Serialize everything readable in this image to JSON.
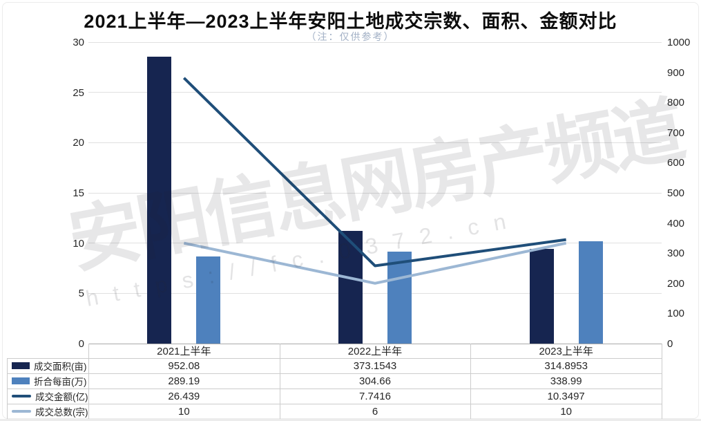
{
  "title": "2021上半年—2023上半年安阳土地成交宗数、面积、金额对比",
  "subtitle": "（注：仅供参考）",
  "watermark": {
    "main": "安阳信息网房产频道",
    "url": "https://fc.0372.cn"
  },
  "colors": {
    "bar_area": "#162550",
    "bar_per_mu": "#4e81bd",
    "line_amount": "#1f4e79",
    "line_count": "#9cb7d4",
    "grid": "#e0e0e0",
    "axis_base": "#a8a8a8",
    "subtitle": "#a3b1c6"
  },
  "chart_data": {
    "type": "bar",
    "subtype": "combo bar+line, dual axis",
    "categories": [
      "2021上半年",
      "2022上半年",
      "2023上半年"
    ],
    "series": [
      {
        "name": "成交面积(亩)",
        "kind": "bar",
        "axis": "right",
        "color": "#162550",
        "values": [
          952.08,
          373.1543,
          314.8953
        ]
      },
      {
        "name": "折合每亩(万)",
        "kind": "bar",
        "axis": "right",
        "color": "#4e81bd",
        "values": [
          289.19,
          304.66,
          338.99
        ]
      },
      {
        "name": "成交金额(亿)",
        "kind": "line",
        "axis": "left",
        "color": "#1f4e79",
        "values": [
          26.439,
          7.7416,
          10.3497
        ]
      },
      {
        "name": "成交总数(宗)",
        "kind": "line",
        "axis": "left",
        "color": "#9cb7d4",
        "values": [
          10,
          6,
          10
        ]
      }
    ],
    "left_axis": {
      "min": 0,
      "max": 30,
      "step": 5,
      "ticks": [
        0,
        5,
        10,
        15,
        20,
        25,
        30
      ]
    },
    "right_axis": {
      "min": 0,
      "max": 1000,
      "step": 100,
      "ticks": [
        0,
        100,
        200,
        300,
        400,
        500,
        600,
        700,
        800,
        900,
        1000
      ]
    },
    "grid": true,
    "legend_position": "table-left",
    "data_table": {
      "columns": [
        "2021上半年",
        "2022上半年",
        "2023上半年"
      ],
      "rows": [
        {
          "label": "成交面积(亩)",
          "values": [
            "952.08",
            "373.1543",
            "314.8953"
          ]
        },
        {
          "label": "折合每亩(万)",
          "values": [
            "289.19",
            "304.66",
            "338.99"
          ]
        },
        {
          "label": "成交金额(亿)",
          "values": [
            "26.439",
            "7.7416",
            "10.3497"
          ]
        },
        {
          "label": "成交总数(宗)",
          "values": [
            "10",
            "6",
            "10"
          ]
        }
      ]
    }
  }
}
